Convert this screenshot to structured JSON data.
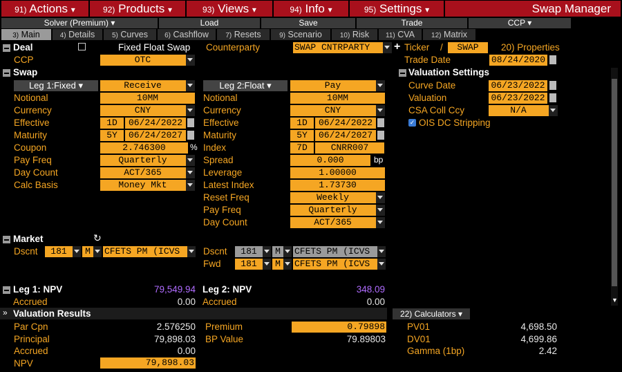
{
  "menu": {
    "actions": "Actions",
    "actions_n": "91)",
    "products": "Products",
    "products_n": "92)",
    "views": "Views",
    "views_n": "93)",
    "info": "Info",
    "info_n": "94)",
    "settings": "Settings",
    "settings_n": "95)",
    "title": "Swap Manager"
  },
  "toolbar": {
    "solver": "Solver (Premium)",
    "load": "Load",
    "save": "Save",
    "trade": "Trade",
    "ccp": "CCP"
  },
  "tabs": [
    {
      "n": "3)",
      "label": "Main"
    },
    {
      "n": "4)",
      "label": "Details"
    },
    {
      "n": "5)",
      "label": "Curves"
    },
    {
      "n": "6)",
      "label": "Cashflow"
    },
    {
      "n": "7)",
      "label": "Resets"
    },
    {
      "n": "9)",
      "label": "Scenario"
    },
    {
      "n": "10)",
      "label": "Risk"
    },
    {
      "n": "11)",
      "label": "CVA"
    },
    {
      "n": "12)",
      "label": "Matrix"
    }
  ],
  "deal": {
    "label": "Deal",
    "type": "Fixed Float Swap",
    "counterparty_label": "Counterparty",
    "counterparty": "SWAP CNTRPARTY",
    "ticker_label": "Ticker",
    "ticker_sep": "/",
    "ticker": "SWAP",
    "properties": "20) Properties",
    "ccp_label": "CCP",
    "ccp": "OTC",
    "trade_date_label": "Trade Date",
    "trade_date": "08/24/2020"
  },
  "swap": {
    "label": "Swap"
  },
  "leg1": {
    "title": "Leg 1:Fixed",
    "direction": "Receive",
    "notional_label": "Notional",
    "notional": "10MM",
    "currency_label": "Currency",
    "currency": "CNY",
    "effective_label": "Effective",
    "effective_tenor": "1D",
    "effective": "06/24/2022",
    "maturity_label": "Maturity",
    "maturity_tenor": "5Y",
    "maturity": "06/24/2027",
    "coupon_label": "Coupon",
    "coupon": "2.746300",
    "coupon_unit": "%",
    "payfreq_label": "Pay Freq",
    "payfreq": "Quarterly",
    "daycount_label": "Day Count",
    "daycount": "ACT/365",
    "calc_label": "Calc Basis",
    "calc": "Money Mkt"
  },
  "leg2": {
    "title": "Leg 2:Float",
    "direction": "Pay",
    "notional_label": "Notional",
    "notional": "10MM",
    "currency_label": "Currency",
    "currency": "CNY",
    "effective_label": "Effective",
    "effective_tenor": "1D",
    "effective": "06/24/2022",
    "maturity_label": "Maturity",
    "maturity_tenor": "5Y",
    "maturity": "06/24/2027",
    "index_label": "Index",
    "index_tenor": "7D",
    "index": "CNRR007",
    "spread_label": "Spread",
    "spread": "0.000",
    "spread_unit": "bp",
    "leverage_label": "Leverage",
    "leverage": "1.00000",
    "latest_label": "Latest Index",
    "latest": "1.73730",
    "reset_label": "Reset Freq",
    "reset": "Weekly",
    "payfreq_label": "Pay Freq",
    "payfreq": "Quarterly",
    "daycount_label": "Day Count",
    "daycount": "ACT/365"
  },
  "valuation_settings": {
    "label": "Valuation Settings",
    "curve_label": "Curve Date",
    "curve": "06/23/2022",
    "valuation_label": "Valuation",
    "valuation": "06/23/2022",
    "csa_label": "CSA Coll Ccy",
    "csa": "N/A",
    "ois_label": "OIS DC Stripping"
  },
  "market": {
    "label": "Market",
    "dscnt_label": "Dscnt",
    "d1_num": "181",
    "d1_m": "M",
    "d1_curve": "CFETS PM   (ICVS",
    "dscnt2_label": "Dscnt",
    "d2_num": "181",
    "d2_m": "M",
    "d2_curve": "CFETS PM   (ICVS",
    "fwd_label": "Fwd",
    "f_num": "181",
    "f_m": "M",
    "f_curve": "CFETS PM   (ICVS"
  },
  "npv": {
    "leg1_label": "Leg 1: NPV",
    "leg1": "79,549.94",
    "leg1_accr_label": "Accrued",
    "leg1_accr": "0.00",
    "leg2_label": "Leg 2: NPV",
    "leg2": "348.09",
    "leg2_accr_label": "Accrued",
    "leg2_accr": "0.00"
  },
  "results": {
    "label": "Valuation Results",
    "calculators": "22) Calculators",
    "parcpn_label": "Par Cpn",
    "parcpn": "2.576250",
    "principal_label": "Principal",
    "principal": "79,898.03",
    "accrued_label": "Accrued",
    "accrued": "0.00",
    "npv_label": "NPV",
    "npv": "79,898.03",
    "premium_label": "Premium",
    "premium": "0.79898",
    "bpvalue_label": "BP Value",
    "bpvalue": "79.89803",
    "pv01_label": "PV01",
    "pv01": "4,698.50",
    "dv01_label": "DV01",
    "dv01": "4,699.86",
    "gamma_label": "Gamma (1bp)",
    "gamma": "2.42"
  }
}
